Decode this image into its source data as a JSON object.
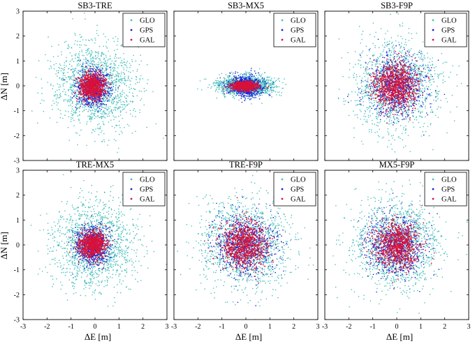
{
  "figure": {
    "xlabel": "ΔE [m]",
    "ylabel": "ΔN [m]"
  },
  "colors": {
    "GLO": "#48c0bc",
    "GPS": "#1a1adc",
    "GAL": "#d8123a"
  },
  "chart_data": [
    {
      "type": "scatter",
      "title": "SB3-TRE",
      "xlim": [
        -3,
        3
      ],
      "ylim": [
        -3,
        3
      ],
      "xticks": [
        -3,
        -2,
        -1,
        0,
        1,
        2,
        3
      ],
      "yticks": [
        -3,
        -2,
        -1,
        0,
        1,
        2,
        3
      ],
      "legend": {
        "placement": "top-right",
        "entries": [
          "GLO",
          "GPS",
          "GAL"
        ]
      },
      "series": [
        {
          "name": "GLO",
          "center": [
            0,
            0
          ],
          "spread": [
            0.85,
            0.85
          ]
        },
        {
          "name": "GPS",
          "center": [
            -0.1,
            -0.05
          ],
          "spread": [
            0.35,
            0.38
          ]
        },
        {
          "name": "GAL",
          "center": [
            -0.1,
            0
          ],
          "spread": [
            0.27,
            0.27
          ]
        }
      ]
    },
    {
      "type": "scatter",
      "title": "SB3-MX5",
      "xlim": [
        -3,
        3
      ],
      "ylim": [
        -3,
        3
      ],
      "xticks": [
        -3,
        -2,
        -1,
        0,
        1,
        2,
        3
      ],
      "yticks": [
        -3,
        -2,
        -1,
        0,
        1,
        2,
        3
      ],
      "legend": {
        "placement": "top-right",
        "entries": [
          "GLO",
          "GPS",
          "GAL"
        ]
      },
      "series": [
        {
          "name": "GLO",
          "center": [
            0,
            0
          ],
          "spread": [
            0.55,
            0.2
          ]
        },
        {
          "name": "GPS",
          "center": [
            0,
            0
          ],
          "spread": [
            0.35,
            0.2
          ]
        },
        {
          "name": "GAL",
          "center": [
            -0.05,
            0
          ],
          "spread": [
            0.25,
            0.09
          ]
        }
      ]
    },
    {
      "type": "scatter",
      "title": "SB3-F9P",
      "xlim": [
        -3,
        3
      ],
      "ylim": [
        -3,
        3
      ],
      "xticks": [
        -3,
        -2,
        -1,
        0,
        1,
        2,
        3
      ],
      "yticks": [
        -3,
        -2,
        -1,
        0,
        1,
        2,
        3
      ],
      "legend": {
        "placement": "top-right",
        "entries": [
          "GLO",
          "GPS",
          "GAL"
        ]
      },
      "series": [
        {
          "name": "GLO",
          "center": [
            0,
            0
          ],
          "spread": [
            0.9,
            0.9
          ]
        },
        {
          "name": "GPS",
          "center": [
            0,
            0
          ],
          "spread": [
            0.6,
            0.6
          ]
        },
        {
          "name": "GAL",
          "center": [
            -0.05,
            0
          ],
          "spread": [
            0.45,
            0.45
          ]
        }
      ]
    },
    {
      "type": "scatter",
      "title": "TRE-MX5",
      "xlim": [
        -3,
        3
      ],
      "ylim": [
        -3,
        3
      ],
      "xticks": [
        -3,
        -2,
        -1,
        0,
        1,
        2,
        3
      ],
      "yticks": [
        -3,
        -2,
        -1,
        0,
        1,
        2,
        3
      ],
      "legend": {
        "placement": "top-right",
        "entries": [
          "GLO",
          "GPS",
          "GAL"
        ]
      },
      "series": [
        {
          "name": "GLO",
          "center": [
            0,
            0
          ],
          "spread": [
            0.85,
            0.85
          ]
        },
        {
          "name": "GPS",
          "center": [
            -0.1,
            -0.05
          ],
          "spread": [
            0.35,
            0.38
          ]
        },
        {
          "name": "GAL",
          "center": [
            -0.1,
            0
          ],
          "spread": [
            0.27,
            0.27
          ]
        }
      ]
    },
    {
      "type": "scatter",
      "title": "TRE-F9P",
      "xlim": [
        -3,
        3
      ],
      "ylim": [
        -3,
        3
      ],
      "xticks": [
        -3,
        -2,
        -1,
        0,
        1,
        2,
        3
      ],
      "yticks": [
        -3,
        -2,
        -1,
        0,
        1,
        2,
        3
      ],
      "legend": {
        "placement": "top-right",
        "entries": [
          "GLO",
          "GPS",
          "GAL"
        ]
      },
      "series": [
        {
          "name": "GLO",
          "center": [
            0,
            0
          ],
          "spread": [
            0.9,
            0.9
          ]
        },
        {
          "name": "GPS",
          "center": [
            0,
            0
          ],
          "spread": [
            0.6,
            0.6
          ]
        },
        {
          "name": "GAL",
          "center": [
            -0.05,
            0
          ],
          "spread": [
            0.45,
            0.45
          ]
        }
      ]
    },
    {
      "type": "scatter",
      "title": "MX5-F9P",
      "xlim": [
        -3,
        3
      ],
      "ylim": [
        -3,
        3
      ],
      "xticks": [
        -3,
        -2,
        -1,
        0,
        1,
        2,
        3
      ],
      "yticks": [
        -3,
        -2,
        -1,
        0,
        1,
        2,
        3
      ],
      "legend": {
        "placement": "top-right",
        "entries": [
          "GLO",
          "GPS",
          "GAL"
        ]
      },
      "series": [
        {
          "name": "GLO",
          "center": [
            0,
            0
          ],
          "spread": [
            0.9,
            0.9
          ]
        },
        {
          "name": "GPS",
          "center": [
            0,
            0
          ],
          "spread": [
            0.6,
            0.6
          ]
        },
        {
          "name": "GAL",
          "center": [
            -0.05,
            0
          ],
          "spread": [
            0.45,
            0.45
          ]
        }
      ]
    }
  ]
}
